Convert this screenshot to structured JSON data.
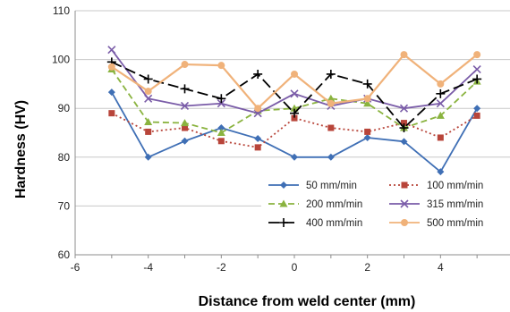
{
  "chart_data": {
    "type": "line",
    "xlabel": "Distance from weld center (mm)",
    "ylabel": "Hardness (HV)",
    "xlim": [
      -6,
      6
    ],
    "ylim": [
      60,
      110
    ],
    "x_ticks": [
      -6,
      -4,
      -2,
      0,
      2,
      4
    ],
    "y_ticks": [
      60,
      70,
      80,
      90,
      100,
      110
    ],
    "y_tick_labels": [
      "60",
      "70",
      "80",
      "90",
      "100",
      "110"
    ],
    "grid": "horizontal",
    "legend_position": "bottom-right",
    "series": [
      {
        "name": "50 mm/min",
        "color": "#3f6fb5",
        "dash": "solid",
        "marker": "diamond",
        "x": [
          -5,
          -4,
          -3,
          -2,
          -1,
          0,
          1,
          2,
          3,
          4,
          5
        ],
        "y": [
          93.3,
          80,
          83.3,
          86,
          83.8,
          80,
          80,
          84,
          83.2,
          77,
          90
        ]
      },
      {
        "name": "100 mm/min",
        "color": "#b8453a",
        "dash": "dot",
        "marker": "square",
        "x": [
          -5,
          -4,
          -3,
          -2,
          -1,
          0,
          1,
          2,
          3,
          4,
          5
        ],
        "y": [
          89,
          85.2,
          86,
          83.3,
          82,
          88,
          86,
          85.2,
          87,
          84,
          88.5
        ]
      },
      {
        "name": "200 mm/min",
        "color": "#8ab33f",
        "dash": "dash",
        "marker": "triangle",
        "x": [
          -5,
          -4,
          -3,
          -2,
          -1,
          0,
          1,
          2,
          3,
          4,
          5
        ],
        "y": [
          98,
          87.2,
          87,
          85,
          89.5,
          90,
          92,
          91,
          86,
          88.5,
          95.5
        ]
      },
      {
        "name": "315 mm/min",
        "color": "#7a5ca8",
        "dash": "solid",
        "marker": "x",
        "x": [
          -5,
          -4,
          -3,
          -2,
          -1,
          0,
          1,
          2,
          3,
          4,
          5
        ],
        "y": [
          102,
          92,
          90.5,
          91,
          89,
          93,
          90.5,
          92,
          90,
          91,
          98
        ]
      },
      {
        "name": "400 mm/min",
        "color": "#000000",
        "dash": "longdash",
        "marker": "plus",
        "x": [
          -5,
          -4,
          -3,
          -2,
          -1,
          0,
          1,
          2,
          3,
          4,
          5
        ],
        "y": [
          99.5,
          96,
          94,
          92,
          97,
          89,
          97,
          95,
          86,
          93,
          96
        ]
      },
      {
        "name": "500 mm/min",
        "color": "#f0b27a",
        "dash": "solid",
        "marker": "circle",
        "x": [
          -5,
          -4,
          -3,
          -2,
          -1,
          0,
          1,
          2,
          3,
          4,
          5
        ],
        "y": [
          98.5,
          93.5,
          99,
          98.8,
          90,
          97,
          91,
          92,
          101,
          95,
          101
        ]
      }
    ]
  }
}
